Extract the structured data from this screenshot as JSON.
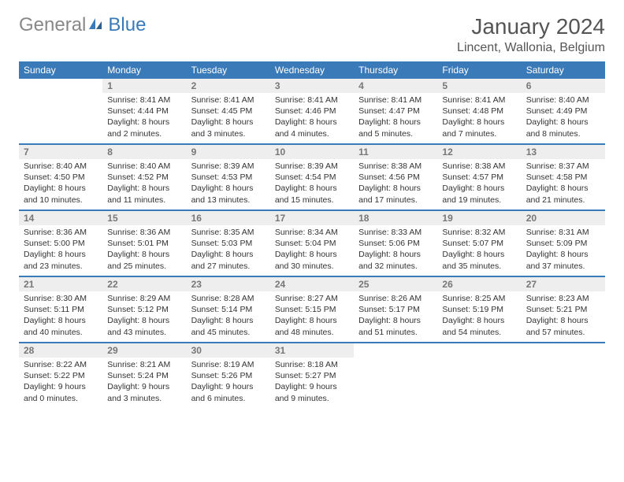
{
  "logo": {
    "text1": "General",
    "text2": "Blue"
  },
  "title": "January 2024",
  "location": "Lincent, Wallonia, Belgium",
  "colors": {
    "header_bg": "#3a7ab8",
    "day_num_bg": "#eeeeee",
    "text": "#333333",
    "logo_gray": "#888888",
    "logo_blue": "#3a7ab8"
  },
  "weekdays": [
    "Sunday",
    "Monday",
    "Tuesday",
    "Wednesday",
    "Thursday",
    "Friday",
    "Saturday"
  ],
  "weeks": [
    [
      null,
      {
        "n": "1",
        "sr": "8:41 AM",
        "ss": "4:44 PM",
        "dl": "8 hours and 2 minutes."
      },
      {
        "n": "2",
        "sr": "8:41 AM",
        "ss": "4:45 PM",
        "dl": "8 hours and 3 minutes."
      },
      {
        "n": "3",
        "sr": "8:41 AM",
        "ss": "4:46 PM",
        "dl": "8 hours and 4 minutes."
      },
      {
        "n": "4",
        "sr": "8:41 AM",
        "ss": "4:47 PM",
        "dl": "8 hours and 5 minutes."
      },
      {
        "n": "5",
        "sr": "8:41 AM",
        "ss": "4:48 PM",
        "dl": "8 hours and 7 minutes."
      },
      {
        "n": "6",
        "sr": "8:40 AM",
        "ss": "4:49 PM",
        "dl": "8 hours and 8 minutes."
      }
    ],
    [
      {
        "n": "7",
        "sr": "8:40 AM",
        "ss": "4:50 PM",
        "dl": "8 hours and 10 minutes."
      },
      {
        "n": "8",
        "sr": "8:40 AM",
        "ss": "4:52 PM",
        "dl": "8 hours and 11 minutes."
      },
      {
        "n": "9",
        "sr": "8:39 AM",
        "ss": "4:53 PM",
        "dl": "8 hours and 13 minutes."
      },
      {
        "n": "10",
        "sr": "8:39 AM",
        "ss": "4:54 PM",
        "dl": "8 hours and 15 minutes."
      },
      {
        "n": "11",
        "sr": "8:38 AM",
        "ss": "4:56 PM",
        "dl": "8 hours and 17 minutes."
      },
      {
        "n": "12",
        "sr": "8:38 AM",
        "ss": "4:57 PM",
        "dl": "8 hours and 19 minutes."
      },
      {
        "n": "13",
        "sr": "8:37 AM",
        "ss": "4:58 PM",
        "dl": "8 hours and 21 minutes."
      }
    ],
    [
      {
        "n": "14",
        "sr": "8:36 AM",
        "ss": "5:00 PM",
        "dl": "8 hours and 23 minutes."
      },
      {
        "n": "15",
        "sr": "8:36 AM",
        "ss": "5:01 PM",
        "dl": "8 hours and 25 minutes."
      },
      {
        "n": "16",
        "sr": "8:35 AM",
        "ss": "5:03 PM",
        "dl": "8 hours and 27 minutes."
      },
      {
        "n": "17",
        "sr": "8:34 AM",
        "ss": "5:04 PM",
        "dl": "8 hours and 30 minutes."
      },
      {
        "n": "18",
        "sr": "8:33 AM",
        "ss": "5:06 PM",
        "dl": "8 hours and 32 minutes."
      },
      {
        "n": "19",
        "sr": "8:32 AM",
        "ss": "5:07 PM",
        "dl": "8 hours and 35 minutes."
      },
      {
        "n": "20",
        "sr": "8:31 AM",
        "ss": "5:09 PM",
        "dl": "8 hours and 37 minutes."
      }
    ],
    [
      {
        "n": "21",
        "sr": "8:30 AM",
        "ss": "5:11 PM",
        "dl": "8 hours and 40 minutes."
      },
      {
        "n": "22",
        "sr": "8:29 AM",
        "ss": "5:12 PM",
        "dl": "8 hours and 43 minutes."
      },
      {
        "n": "23",
        "sr": "8:28 AM",
        "ss": "5:14 PM",
        "dl": "8 hours and 45 minutes."
      },
      {
        "n": "24",
        "sr": "8:27 AM",
        "ss": "5:15 PM",
        "dl": "8 hours and 48 minutes."
      },
      {
        "n": "25",
        "sr": "8:26 AM",
        "ss": "5:17 PM",
        "dl": "8 hours and 51 minutes."
      },
      {
        "n": "26",
        "sr": "8:25 AM",
        "ss": "5:19 PM",
        "dl": "8 hours and 54 minutes."
      },
      {
        "n": "27",
        "sr": "8:23 AM",
        "ss": "5:21 PM",
        "dl": "8 hours and 57 minutes."
      }
    ],
    [
      {
        "n": "28",
        "sr": "8:22 AM",
        "ss": "5:22 PM",
        "dl": "9 hours and 0 minutes."
      },
      {
        "n": "29",
        "sr": "8:21 AM",
        "ss": "5:24 PM",
        "dl": "9 hours and 3 minutes."
      },
      {
        "n": "30",
        "sr": "8:19 AM",
        "ss": "5:26 PM",
        "dl": "9 hours and 6 minutes."
      },
      {
        "n": "31",
        "sr": "8:18 AM",
        "ss": "5:27 PM",
        "dl": "9 hours and 9 minutes."
      },
      null,
      null,
      null
    ]
  ],
  "labels": {
    "sunrise": "Sunrise:",
    "sunset": "Sunset:",
    "daylight": "Daylight:"
  }
}
